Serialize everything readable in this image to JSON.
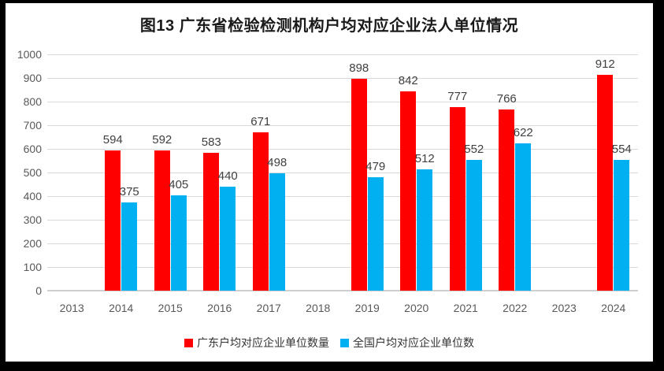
{
  "title": "图13 广东省检验检测机构户均对应企业法人单位情况",
  "chart_data": {
    "type": "bar",
    "title": "图13 广东省检验检测机构户均对应企业法人单位情况",
    "categories": [
      "2013",
      "2014",
      "2015",
      "2016",
      "2017",
      "2018",
      "2019",
      "2020",
      "2021",
      "2022",
      "2023",
      "2024"
    ],
    "series": [
      {
        "name": "广东户均对应企业单位数量",
        "color": "#ff0000",
        "values": [
          null,
          594,
          592,
          583,
          671,
          null,
          898,
          842,
          777,
          766,
          null,
          912
        ]
      },
      {
        "name": "全国户均对应企业单位数",
        "color": "#00b0f0",
        "values": [
          null,
          375,
          405,
          440,
          498,
          null,
          479,
          512,
          552,
          622,
          null,
          554
        ]
      }
    ],
    "xlabel": "",
    "ylabel": "",
    "ylim": [
      0,
      1000
    ],
    "yticks": [
      0,
      100,
      200,
      300,
      400,
      500,
      600,
      700,
      800,
      900,
      1000
    ],
    "grid": true,
    "value_labels": true,
    "legend_position": "bottom"
  },
  "colors": {
    "frame": "#000000",
    "background": "#ffffff",
    "gridline": "#d9d9d9",
    "axis_text": "#595959",
    "value_text": "#404040"
  }
}
